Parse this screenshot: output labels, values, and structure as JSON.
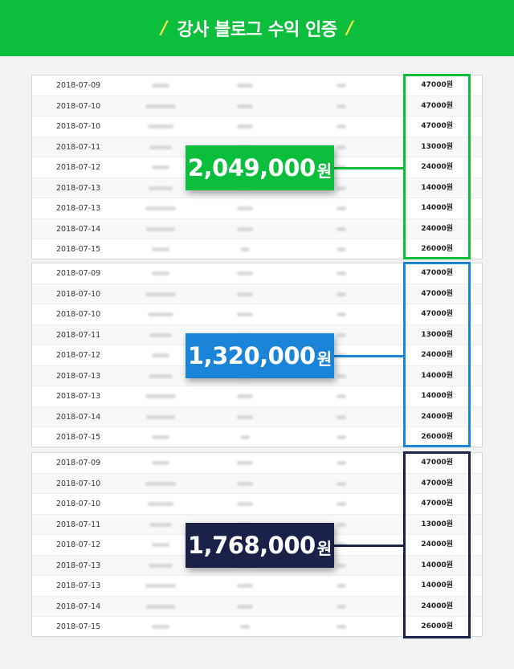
{
  "header": {
    "title": "강사 블로그 수익 인증",
    "slash_glyph": "/",
    "bg_color": "#0bbf3c",
    "slash_color": "#f6e84a"
  },
  "panels": [
    {
      "total_number": "2,049,000",
      "total_unit": "원",
      "accent_color": "#0bbf3c",
      "rows": [
        {
          "date": "2018-07-09",
          "amount": "47000원"
        },
        {
          "date": "2018-07-10",
          "amount": "47000원"
        },
        {
          "date": "2018-07-10",
          "amount": "47000원"
        },
        {
          "date": "2018-07-11",
          "amount": "13000원"
        },
        {
          "date": "2018-07-12",
          "amount": "24000원"
        },
        {
          "date": "2018-07-13",
          "amount": "14000원"
        },
        {
          "date": "2018-07-13",
          "amount": "14000원"
        },
        {
          "date": "2018-07-14",
          "amount": "24000원"
        },
        {
          "date": "2018-07-15",
          "amount": "26000원"
        }
      ]
    },
    {
      "total_number": "1,320,000",
      "total_unit": "원",
      "accent_color": "#1a84d8",
      "rows": [
        {
          "date": "2018-07-09",
          "amount": "47000원"
        },
        {
          "date": "2018-07-10",
          "amount": "47000원"
        },
        {
          "date": "2018-07-10",
          "amount": "47000원"
        },
        {
          "date": "2018-07-11",
          "amount": "13000원"
        },
        {
          "date": "2018-07-12",
          "amount": "24000원"
        },
        {
          "date": "2018-07-13",
          "amount": "14000원"
        },
        {
          "date": "2018-07-13",
          "amount": "14000원"
        },
        {
          "date": "2018-07-14",
          "amount": "24000원"
        },
        {
          "date": "2018-07-15",
          "amount": "26000원"
        }
      ]
    },
    {
      "total_number": "1,768,000",
      "total_unit": "원",
      "accent_color": "#1a2149",
      "rows": [
        {
          "date": "2018-07-09",
          "amount": "47000원"
        },
        {
          "date": "2018-07-10",
          "amount": "47000원"
        },
        {
          "date": "2018-07-10",
          "amount": "47000원"
        },
        {
          "date": "2018-07-11",
          "amount": "13000원"
        },
        {
          "date": "2018-07-12",
          "amount": "24000원"
        },
        {
          "date": "2018-07-13",
          "amount": "14000원"
        },
        {
          "date": "2018-07-13",
          "amount": "14000원"
        },
        {
          "date": "2018-07-14",
          "amount": "24000원"
        },
        {
          "date": "2018-07-15",
          "amount": "26000원"
        }
      ]
    }
  ]
}
